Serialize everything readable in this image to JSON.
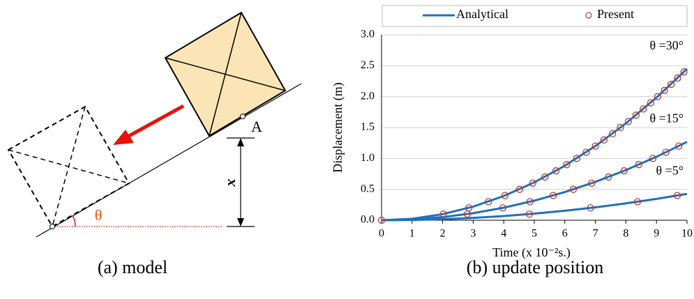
{
  "diagram": {
    "point_label": "A",
    "distance_label": "x",
    "angle_label": "θ",
    "caption": "(a) model"
  },
  "chart_data": {
    "type": "line",
    "caption": "(b) update position",
    "x_label": "Time (x 10⁻²s.)",
    "y_label": "Displacement  (m)",
    "x": [
      0,
      1,
      2,
      3,
      4,
      5,
      6,
      7,
      8,
      9,
      10
    ],
    "xlim": [
      0,
      10
    ],
    "xticks": [
      0,
      1,
      2,
      3,
      4,
      5,
      6,
      7,
      8,
      9,
      10
    ],
    "ylim": [
      0,
      3
    ],
    "yticks": [
      {
        "value": 0,
        "label": "0.0"
      },
      0.5,
      {
        "value": 1,
        "label": "1.0"
      },
      1.5,
      {
        "value": 2,
        "label": "2.0"
      },
      2.5,
      {
        "value": 3,
        "label": "3.0"
      }
    ],
    "grid": true,
    "series": [
      {
        "name": "Analytical",
        "color": "#1f6fbf",
        "curves": [
          {
            "annotation": "θ =30°",
            "values": [
              0,
              0.0245,
              0.098,
              0.2205,
              0.392,
              0.6125,
              0.882,
              1.2005,
              1.568,
              1.9845,
              2.45
            ]
          },
          {
            "annotation": "θ =15°",
            "values": [
              0,
              0.0127,
              0.0507,
              0.1141,
              0.2029,
              0.317,
              0.4565,
              0.6213,
              0.8115,
              1.0271,
              1.268
            ]
          },
          {
            "annotation": "θ =5°",
            "values": [
              0,
              0.0043,
              0.0171,
              0.0384,
              0.0683,
              0.1068,
              0.1537,
              0.2092,
              0.2733,
              0.3459,
              0.427
            ]
          }
        ]
      },
      {
        "name": "Present",
        "color": "#c0392b",
        "x": [
          0,
          2.02,
          2.86,
          3.5,
          4.04,
          4.52,
          4.95,
          5.35,
          5.71,
          6.06,
          6.39,
          6.7,
          7.0,
          7.28,
          7.56,
          7.82,
          8.08,
          8.33,
          8.57,
          8.81,
          9.04,
          9.26,
          9.48,
          9.69,
          9.9,
          2.81,
          3.97,
          4.86,
          5.62,
          6.28,
          6.88,
          7.43,
          7.94,
          8.42,
          8.88,
          9.31,
          9.73,
          4.84,
          6.84,
          8.38,
          9.68
        ],
        "values": [
          0,
          0.1,
          0.2,
          0.3,
          0.4,
          0.5,
          0.6,
          0.7,
          0.8,
          0.9,
          1.0,
          1.1,
          1.2,
          1.3,
          1.4,
          1.5,
          1.6,
          1.7,
          1.8,
          1.9,
          2.0,
          2.1,
          2.2,
          2.3,
          2.4,
          0.1,
          0.2,
          0.3,
          0.4,
          0.5,
          0.6,
          0.7,
          0.8,
          0.9,
          1.0,
          1.1,
          1.2,
          0.1,
          0.2,
          0.3,
          0.4
        ]
      }
    ]
  }
}
